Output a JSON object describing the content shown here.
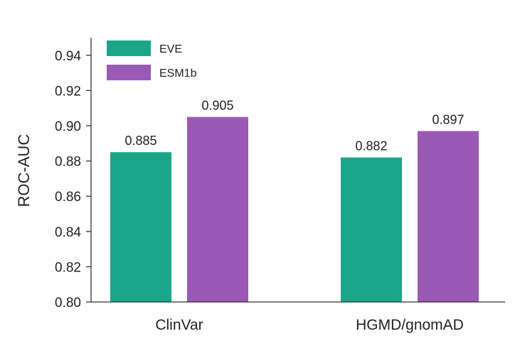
{
  "chart_data": {
    "type": "bar",
    "title": "",
    "xlabel": "",
    "ylabel": "ROC-AUC",
    "ylim": [
      0.8,
      0.95
    ],
    "yticks": [
      "0.80",
      "0.82",
      "0.84",
      "0.86",
      "0.88",
      "0.90",
      "0.92",
      "0.94"
    ],
    "categories": [
      "ClinVar",
      "HGMD/gnomAD"
    ],
    "series": [
      {
        "name": "EVE",
        "color": "#1aa689",
        "values": [
          0.885,
          0.882
        ],
        "labels": [
          "0.885",
          "0.882"
        ]
      },
      {
        "name": "ESM1b",
        "color": "#9b59b6",
        "values": [
          0.905,
          0.897
        ],
        "labels": [
          "0.905",
          "0.897"
        ]
      }
    ],
    "legend": "top-left",
    "grid": false
  }
}
